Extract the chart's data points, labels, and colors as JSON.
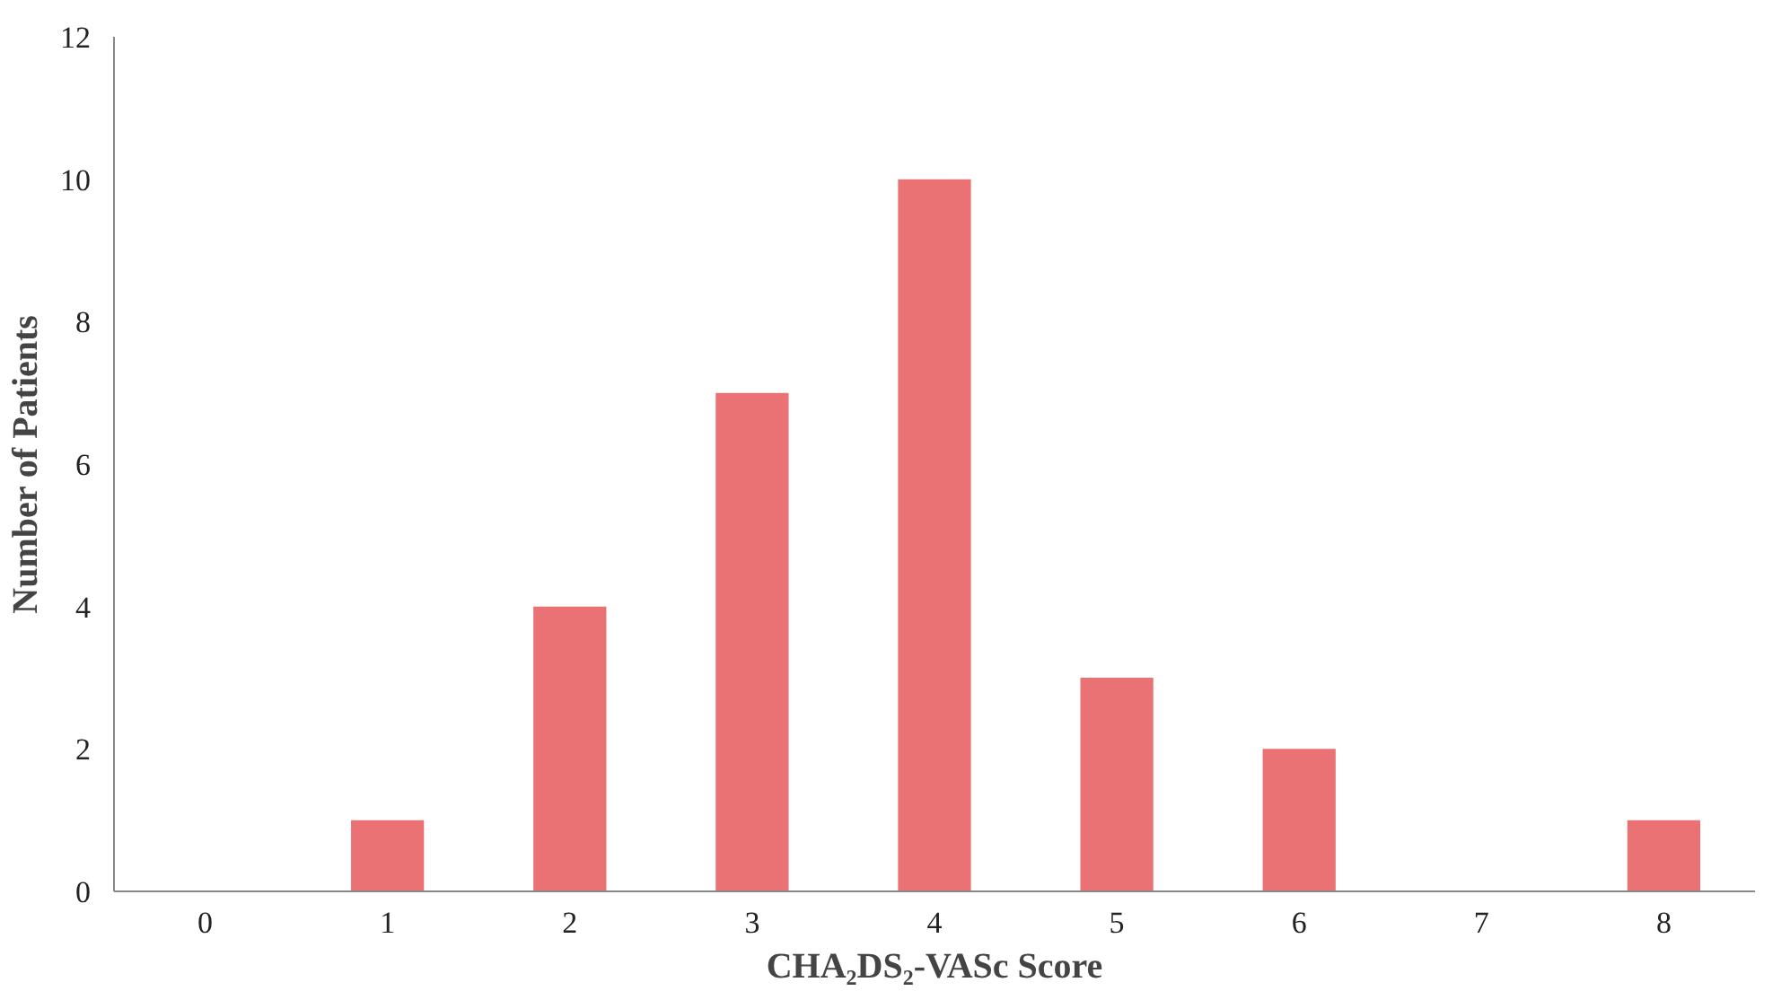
{
  "chart_data": {
    "type": "bar",
    "xlabel": "CHA₂DS₂-VASc Score",
    "ylabel": "Number of Patients",
    "categories": [
      "0",
      "1",
      "2",
      "3",
      "4",
      "5",
      "6",
      "7",
      "8"
    ],
    "values": [
      0,
      1,
      4,
      7,
      10,
      3,
      2,
      0,
      1
    ],
    "color": "#ea7274",
    "ylim": [
      0,
      12
    ],
    "yticks": [
      0,
      2,
      4,
      6,
      8,
      10,
      12
    ]
  }
}
